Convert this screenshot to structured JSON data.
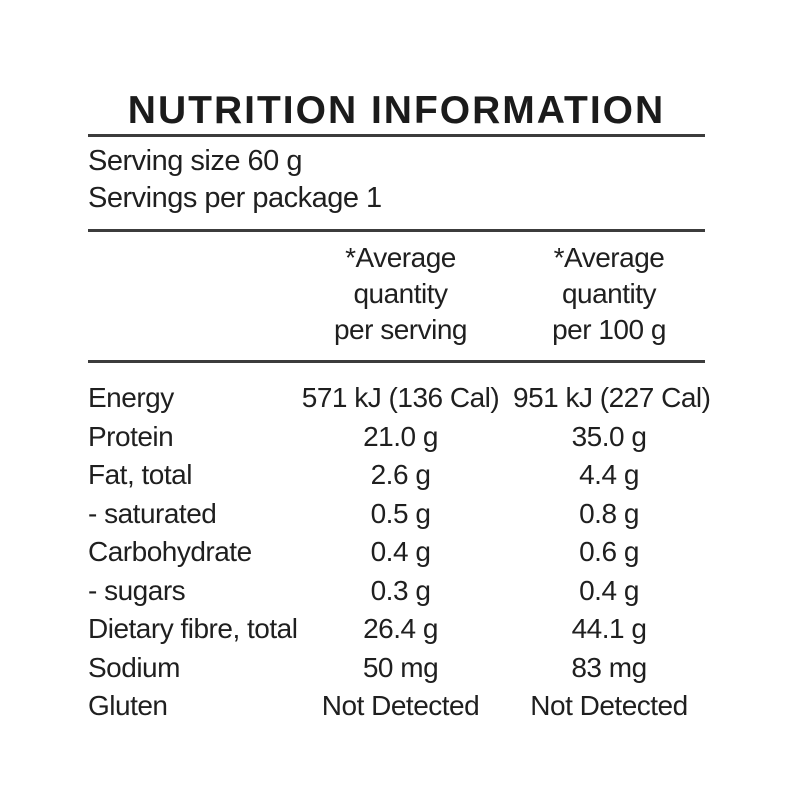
{
  "label": {
    "title": "NUTRITION INFORMATION",
    "serving_size": "Serving size 60 g",
    "servings_per_package": "Servings per package 1",
    "columns": {
      "per_serving": [
        "*Average",
        "quantity",
        "per serving"
      ],
      "per_100g": [
        "*Average",
        "quantity",
        "per 100 g"
      ]
    },
    "rows": [
      {
        "nutrient": "Energy",
        "per_serving": "571 kJ (136 Cal)",
        "per_100g": "951 kJ (227 Cal)"
      },
      {
        "nutrient": "Protein",
        "per_serving": "21.0 g",
        "per_100g": "35.0 g"
      },
      {
        "nutrient": "Fat, total",
        "per_serving": "2.6 g",
        "per_100g": "4.4 g"
      },
      {
        "nutrient": "- saturated",
        "per_serving": "0.5 g",
        "per_100g": "0.8 g"
      },
      {
        "nutrient": "Carbohydrate",
        "per_serving": "0.4 g",
        "per_100g": "0.6 g"
      },
      {
        "nutrient": "- sugars",
        "per_serving": "0.3 g",
        "per_100g": "0.4 g"
      },
      {
        "nutrient": "Dietary fibre, total",
        "per_serving": "26.4 g",
        "per_100g": "44.1 g"
      },
      {
        "nutrient": "Sodium",
        "per_serving": "50 mg",
        "per_100g": "83 mg"
      },
      {
        "nutrient": "Gluten",
        "per_serving": "Not Detected",
        "per_100g": "Not Detected"
      }
    ],
    "colors": {
      "text": "#1f1f1f",
      "rule": "#3c3c3c",
      "background": "#ffffff"
    }
  }
}
